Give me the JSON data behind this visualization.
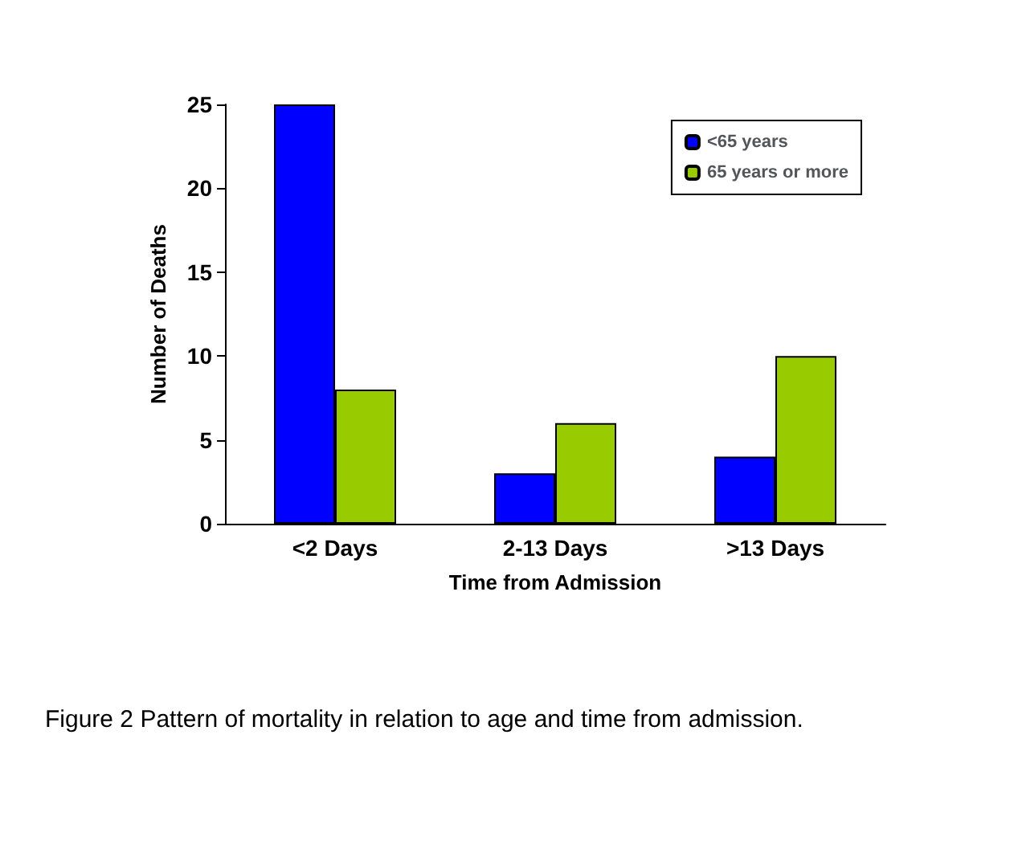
{
  "chart_data": {
    "type": "bar",
    "categories": [
      "<2 Days",
      "2-13 Days",
      ">13 Days"
    ],
    "series": [
      {
        "name": "<65 years",
        "color": "#0000ff",
        "values": [
          25,
          3,
          4
        ]
      },
      {
        "name": "65 years or more",
        "color": "#99cc00",
        "values": [
          8,
          6,
          10
        ]
      }
    ],
    "xlabel": "Time from Admission",
    "ylabel": "Number of Deaths",
    "ylim": [
      0,
      25
    ],
    "yticks": [
      0,
      5,
      10,
      15,
      20,
      25
    ],
    "grid": false,
    "legend": "top right",
    "annotations": [
      "Figure 2 Pattern of mortality in relation to age and time from admission."
    ]
  }
}
